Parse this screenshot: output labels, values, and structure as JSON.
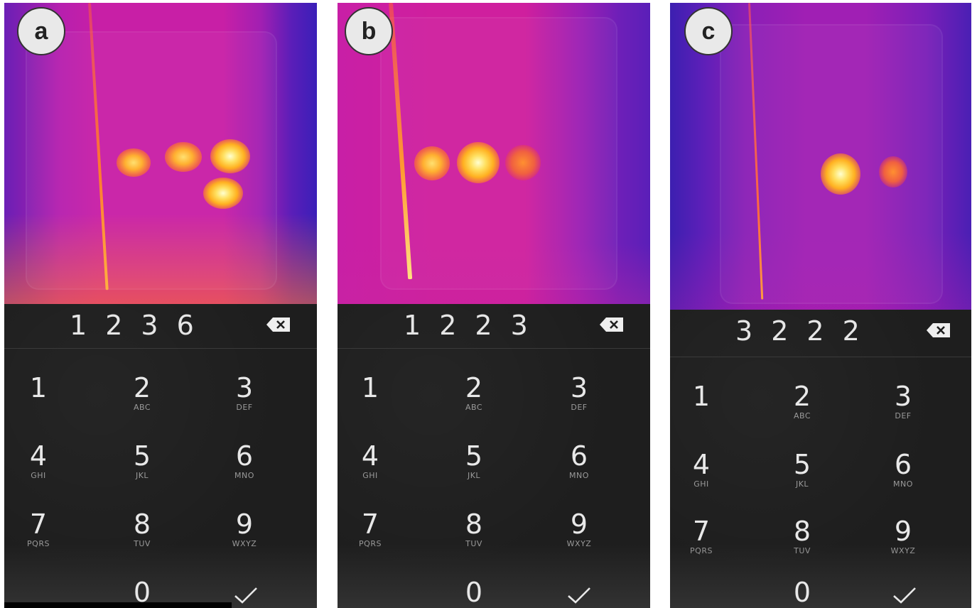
{
  "panels": [
    {
      "label": "a",
      "pin": [
        "1",
        "2",
        "3",
        "6"
      ]
    },
    {
      "label": "b",
      "pin": [
        "1",
        "2",
        "2",
        "3"
      ]
    },
    {
      "label": "c",
      "pin": [
        "3",
        "2",
        "2",
        "2"
      ]
    }
  ],
  "keys": [
    {
      "num": "1",
      "letters": ""
    },
    {
      "num": "2",
      "letters": "ABC"
    },
    {
      "num": "3",
      "letters": "DEF"
    },
    {
      "num": "4",
      "letters": "GHI"
    },
    {
      "num": "5",
      "letters": "JKL"
    },
    {
      "num": "6",
      "letters": "MNO"
    },
    {
      "num": "7",
      "letters": "PQRS"
    },
    {
      "num": "8",
      "letters": "TUV"
    },
    {
      "num": "9",
      "letters": "WXYZ"
    },
    {
      "num": "0",
      "letters": ""
    }
  ],
  "icons": {
    "backspace": "backspace-icon",
    "confirm": "checkmark-icon"
  },
  "colors": {
    "keypad_bg": "#1e1e1e",
    "key_text": "#e8e8e8",
    "thermal_magenta": "#c81fa6",
    "thermal_purple": "#5a1fb8",
    "hotspot_yellow": "#ffe060"
  }
}
